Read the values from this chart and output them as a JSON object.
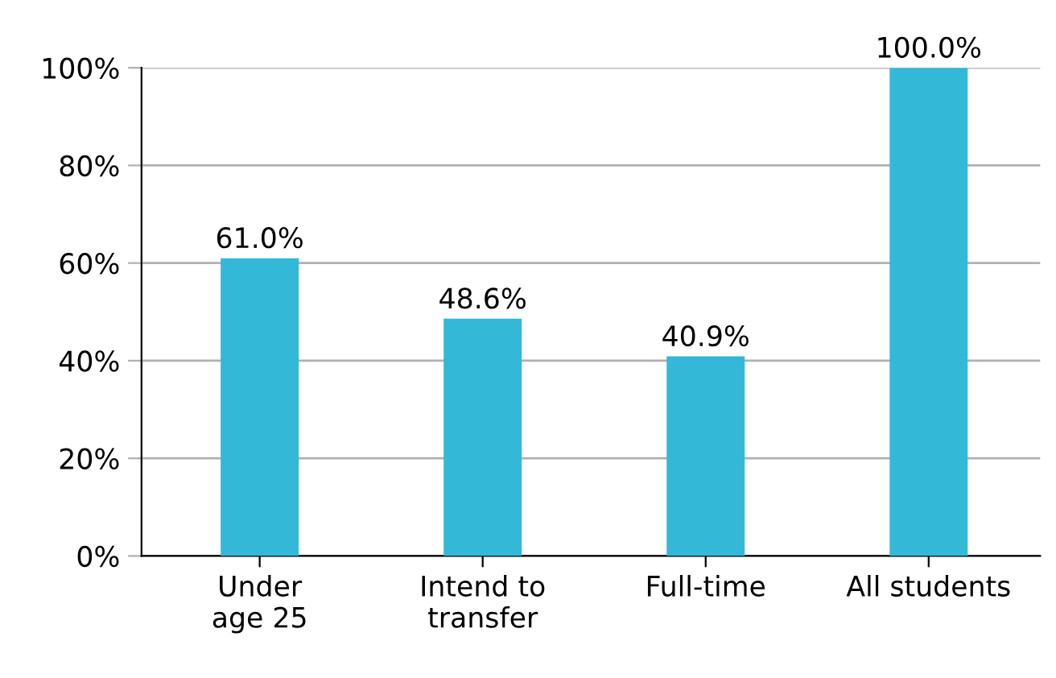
{
  "chart_data": {
    "type": "bar",
    "categories": [
      "Under\nage 25",
      "Intend to\ntransfer",
      "Full-time",
      "All students"
    ],
    "values": [
      61.0,
      48.6,
      40.9,
      100.0
    ],
    "color": "#33b8d8",
    "value_labels": [
      "61.0%",
      "48.6%",
      "40.9%",
      "100.0%"
    ],
    "ylim": [
      0,
      100
    ],
    "yticks": [
      {
        "value": 0,
        "label": "0%"
      },
      {
        "value": 20,
        "label": "20%"
      },
      {
        "value": 40,
        "label": "40%"
      },
      {
        "value": 60,
        "label": "60%"
      },
      {
        "value": 80,
        "label": "80%"
      },
      {
        "value": 100,
        "label": "100%"
      }
    ],
    "grid": "y",
    "legend": false
  }
}
